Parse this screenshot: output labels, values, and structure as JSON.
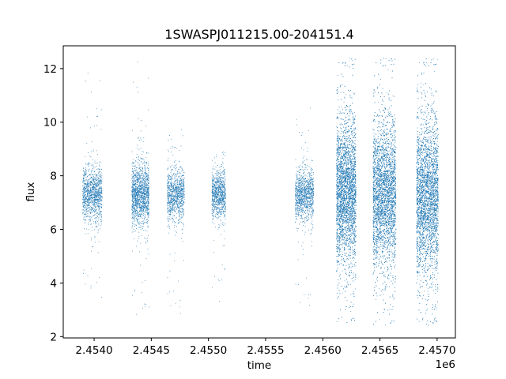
{
  "chart_data": {
    "type": "scatter",
    "title": "1SWASPJ011215.00-204151.4",
    "xlabel": "time",
    "ylabel": "flux",
    "x_offset_label": "1e6",
    "xlim": [
      2453730,
      2457160
    ],
    "ylim": [
      1.95,
      12.85
    ],
    "x_ticks": [
      2454000,
      2454500,
      2455000,
      2455500,
      2456000,
      2456500,
      2457000
    ],
    "x_tick_labels": [
      "2.4540",
      "2.4545",
      "2.4550",
      "2.4555",
      "2.4560",
      "2.4565",
      "2.4570"
    ],
    "y_ticks": [
      2,
      4,
      6,
      8,
      10,
      12
    ],
    "y_tick_labels": [
      "2",
      "4",
      "6",
      "8",
      "10",
      "12"
    ],
    "grid": false,
    "marker_color": "#1f77b4",
    "series": [
      {
        "segments": [
          {
            "x_start": 2453900,
            "x_end": 2454070,
            "center": 7.3,
            "core_spread": 0.5,
            "min": 3.4,
            "max": 12.1,
            "n": 1200
          },
          {
            "x_start": 2454330,
            "x_end": 2454480,
            "center": 7.3,
            "core_spread": 0.55,
            "min": 2.6,
            "max": 12.4,
            "n": 1500
          },
          {
            "x_start": 2454640,
            "x_end": 2454790,
            "center": 7.3,
            "core_spread": 0.45,
            "min": 2.8,
            "max": 9.8,
            "n": 1000
          },
          {
            "x_start": 2455030,
            "x_end": 2455150,
            "center": 7.3,
            "core_spread": 0.45,
            "min": 3.3,
            "max": 8.9,
            "n": 900
          },
          {
            "x_start": 2455760,
            "x_end": 2455920,
            "center": 7.3,
            "core_spread": 0.45,
            "min": 3.1,
            "max": 10.6,
            "n": 1100
          },
          {
            "x_start": 2456120,
            "x_end": 2456290,
            "center": 7.4,
            "core_spread": 1.3,
            "min": 2.5,
            "max": 12.4,
            "n": 4500
          },
          {
            "x_start": 2456440,
            "x_end": 2456640,
            "center": 7.3,
            "core_spread": 1.3,
            "min": 2.4,
            "max": 12.4,
            "n": 4500
          },
          {
            "x_start": 2456820,
            "x_end": 2457010,
            "center": 7.2,
            "core_spread": 1.4,
            "min": 2.4,
            "max": 12.4,
            "n": 4500
          }
        ]
      }
    ]
  }
}
